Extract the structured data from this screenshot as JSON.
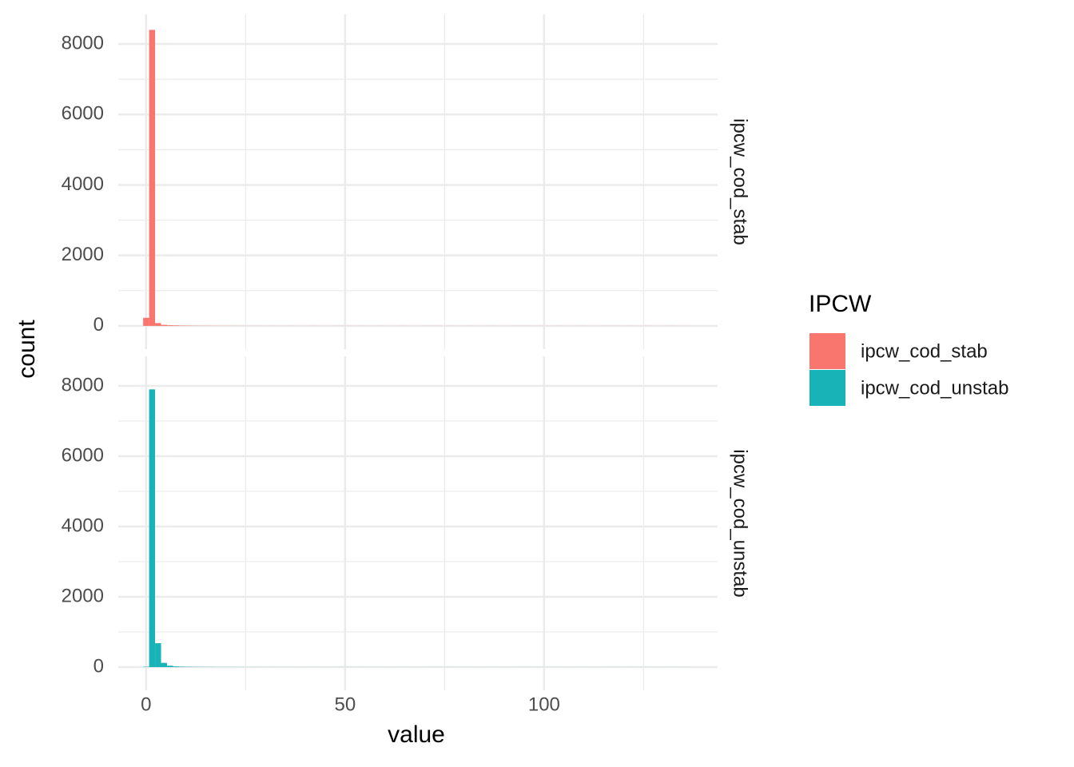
{
  "x_label": "value",
  "y_label": "count",
  "legend_title": "IPCW",
  "chart_data": [
    {
      "type": "histogram",
      "bins": [
        -0.75,
        0.75,
        2.25,
        3.75,
        5.25,
        6.75,
        8.25,
        9.75,
        11.25,
        12.75,
        14.25,
        15.75,
        17.25,
        18.75,
        20.25,
        21.75,
        23.25,
        24.75,
        26.25,
        27.75,
        29.25,
        30.75,
        32.25,
        33.75,
        35.25,
        36.75,
        38.25,
        39.75,
        41.25,
        42.75,
        44.25,
        45.75,
        47.25,
        48.75,
        50.25,
        51.75,
        53.25,
        54.75,
        56.25,
        57.75,
        59.25,
        60.75,
        62.25,
        63.75,
        65.25,
        66.75,
        68.25,
        69.75,
        71.25,
        72.75,
        74.25,
        75.75,
        77.25,
        78.75,
        80.25,
        81.75,
        83.25,
        84.75,
        86.25,
        87.75,
        89.25,
        90.75,
        92.25,
        93.75,
        95.25,
        96.75,
        98.25,
        99.75,
        101.25,
        102.75,
        104.25,
        105.75,
        107.25,
        108.75,
        110.25,
        111.75,
        113.25,
        114.75,
        116.25,
        117.75,
        119.25,
        120.75,
        122.25,
        123.75,
        125.25,
        126.75,
        128.25,
        129.75,
        131.25,
        132.75,
        134.25,
        135.75,
        137.25
      ],
      "series": [
        {
          "name": "ipcw_cod_stab",
          "color": "#F8766D",
          "values": [
            230,
            8400,
            80,
            30,
            20,
            15,
            10,
            8,
            6,
            5,
            4,
            4,
            3,
            3,
            3,
            3,
            2,
            2,
            2,
            2,
            1,
            2,
            1,
            1,
            2,
            1,
            1,
            1,
            2,
            1,
            1,
            1,
            2,
            2,
            2,
            1,
            2,
            1,
            1,
            2,
            1,
            1,
            1,
            2,
            1,
            1,
            1,
            2,
            2,
            2,
            1,
            2,
            1,
            1,
            2,
            1,
            1,
            1,
            2,
            1,
            1,
            1,
            2,
            2,
            2,
            1,
            2,
            1,
            1,
            2,
            1,
            1,
            1,
            2,
            1,
            1,
            1,
            2,
            2,
            2,
            1,
            2,
            1,
            1,
            2,
            1,
            1,
            1,
            2,
            1,
            1,
            1
          ]
        }
      ],
      "xlim": [
        -7,
        143.6
      ],
      "xticks": [
        0,
        50,
        100
      ],
      "ylim": [
        -660,
        8840
      ],
      "yticks": [
        0,
        2000,
        4000,
        6000,
        8000
      ],
      "grid": true
    },
    {
      "type": "histogram",
      "bins": [
        -0.75,
        0.75,
        2.25,
        3.75,
        5.25,
        6.75,
        8.25,
        9.75,
        11.25,
        12.75,
        14.25,
        15.75,
        17.25,
        18.75,
        20.25,
        21.75,
        23.25,
        24.75,
        26.25,
        27.75,
        29.25,
        30.75,
        32.25,
        33.75,
        35.25,
        36.75,
        38.25,
        39.75,
        41.25,
        42.75,
        44.25,
        45.75,
        47.25,
        48.75,
        50.25,
        51.75,
        53.25,
        54.75,
        56.25,
        57.75,
        59.25,
        60.75,
        62.25,
        63.75,
        65.25,
        66.75,
        68.25,
        69.75,
        71.25,
        72.75,
        74.25,
        75.75,
        77.25,
        78.75,
        80.25,
        81.75,
        83.25,
        84.75,
        86.25,
        87.75,
        89.25,
        90.75,
        92.25,
        93.75,
        95.25,
        96.75,
        98.25,
        99.75,
        101.25,
        102.75,
        104.25,
        105.75,
        107.25,
        108.75,
        110.25,
        111.75,
        113.25,
        114.75,
        116.25,
        117.75,
        119.25,
        120.75,
        122.25,
        123.75,
        125.25,
        126.75,
        128.25,
        129.75,
        131.25,
        132.75,
        134.25,
        135.75,
        137.25
      ],
      "series": [
        {
          "name": "ipcw_cod_unstab",
          "color": "#17B3B7",
          "values": [
            10,
            7900,
            680,
            120,
            40,
            20,
            12,
            8,
            6,
            5,
            4,
            4,
            3,
            3,
            3,
            3,
            2,
            2,
            2,
            2,
            1,
            2,
            1,
            1,
            2,
            1,
            1,
            1,
            2,
            1,
            1,
            1,
            2,
            2,
            2,
            1,
            2,
            1,
            1,
            2,
            1,
            1,
            1,
            2,
            1,
            1,
            1,
            2,
            2,
            2,
            1,
            2,
            1,
            1,
            2,
            1,
            1,
            1,
            2,
            1,
            1,
            1,
            2,
            2,
            2,
            1,
            2,
            1,
            1,
            2,
            1,
            1,
            1,
            2,
            1,
            1,
            1,
            2,
            2,
            2,
            1,
            2,
            1,
            1,
            2,
            1,
            1,
            1,
            2,
            1,
            1,
            1
          ]
        }
      ],
      "xlim": [
        -7,
        143.6
      ],
      "xticks": [
        0,
        50,
        100
      ],
      "ylim": [
        -660,
        8840
      ],
      "yticks": [
        0,
        2000,
        4000,
        6000,
        8000
      ],
      "grid": true
    }
  ]
}
